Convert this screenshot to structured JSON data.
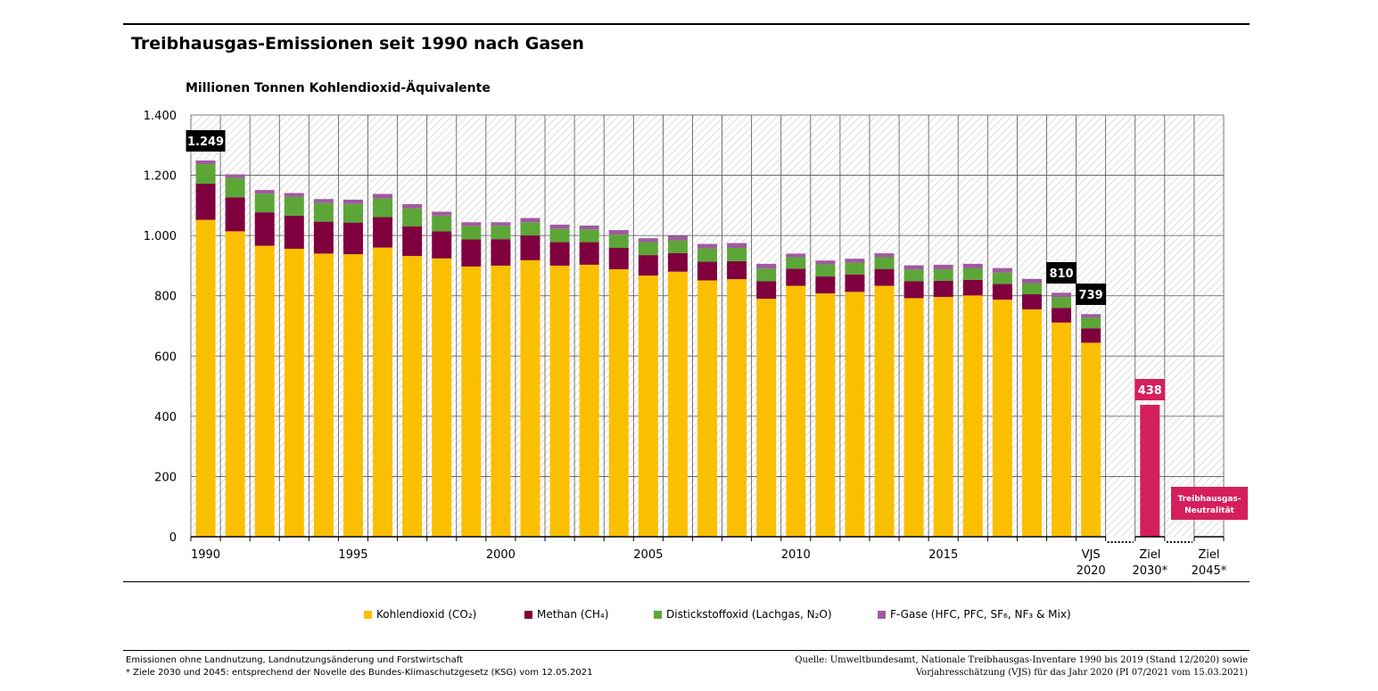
{
  "title": "Treibhausgas-Emissionen seit 1990 nach Gasen",
  "unit_label": "Millionen Tonnen Kohlendioxid-Äquivalente",
  "legend": [
    {
      "label": "Kohlendioxid (CO₂)",
      "color": "#f9bf00"
    },
    {
      "label": "Methan (CH₄)",
      "color": "#80003f"
    },
    {
      "label": "Distickstoffoxid (Lachgas, N₂O)",
      "color": "#5ca638"
    },
    {
      "label": "F-Gase (HFC, PFC, SF₆, NF₃ & Mix)",
      "color": "#a05aa0"
    }
  ],
  "footnotes": {
    "left_1": "Emissionen ohne Landnutzung, Landnutzungsänderung und Forstwirtschaft",
    "left_2": "* Ziele 2030 und 2045: entsprechend der Novelle des Bundes-Klimaschutzgesetz (KSG) vom 12.05.2021",
    "right_1": "Quelle: Umweltbundesamt, Nationale Treibhausgas-Inventare 1990 bis 2019 (Stand 12/2020) sowie",
    "right_2": "Vorjahresschätzung (VJS) für das Jahr 2020 (PI 07/2021 vom 15.03.2021)"
  },
  "chart_data": {
    "type": "bar",
    "stacked": true,
    "title": "Treibhausgas-Emissionen seit 1990 nach Gasen",
    "ylabel": "Millionen Tonnen Kohlendioxid-Äquivalente",
    "ylim": [
      0,
      1400
    ],
    "yticks": [
      0,
      200,
      400,
      600,
      800,
      1000,
      1200,
      1400
    ],
    "ytick_labels": [
      "0",
      "200",
      "400",
      "600",
      "800",
      "1.000",
      "1.200",
      "1.400"
    ],
    "grid": true,
    "legend_position": "bottom",
    "categories": [
      "1990",
      "1991",
      "1992",
      "1993",
      "1994",
      "1995",
      "1996",
      "1997",
      "1998",
      "1999",
      "2000",
      "2001",
      "2002",
      "2003",
      "2004",
      "2005",
      "2006",
      "2007",
      "2008",
      "2009",
      "2010",
      "2011",
      "2012",
      "2013",
      "2014",
      "2015",
      "2016",
      "2017",
      "2018",
      "2019",
      "VJS 2020"
    ],
    "x_tick_labels": [
      "1990",
      "1995",
      "2000",
      "2005",
      "2010",
      "2015",
      "VJS 2020",
      "Ziel 2030*",
      "Ziel 2045*"
    ],
    "series": [
      {
        "name": "Kohlendioxid (CO₂)",
        "color": "#f9bf00",
        "values": [
          1052,
          1014,
          966,
          956,
          940,
          938,
          960,
          932,
          924,
          897,
          900,
          918,
          900,
          903,
          888,
          867,
          880,
          851,
          855,
          790,
          833,
          808,
          813,
          833,
          792,
          796,
          801,
          787,
          755,
          711,
          644
        ]
      },
      {
        "name": "Methan (CH₄)",
        "color": "#80003f",
        "values": [
          120,
          113,
          111,
          110,
          106,
          105,
          101,
          98,
          90,
          90,
          88,
          82,
          78,
          75,
          71,
          68,
          62,
          62,
          60,
          58,
          57,
          56,
          58,
          56,
          56,
          54,
          52,
          52,
          50,
          49,
          48
        ]
      },
      {
        "name": "Distickstoffoxid (Lachgas, N₂O)",
        "color": "#5ca638",
        "values": [
          65,
          64,
          62,
          62,
          62,
          62,
          62,
          60,
          52,
          44,
          44,
          44,
          44,
          42,
          44,
          43,
          42,
          44,
          44,
          42,
          38,
          40,
          39,
          39,
          39,
          38,
          38,
          38,
          37,
          36,
          35
        ]
      },
      {
        "name": "F-Gase (HFC, PFC, SF₆, NF₃ & Mix)",
        "color": "#a05aa0",
        "values": [
          12,
          12,
          12,
          13,
          13,
          14,
          15,
          14,
          13,
          13,
          12,
          14,
          14,
          13,
          15,
          13,
          15,
          15,
          16,
          16,
          12,
          13,
          13,
          13,
          14,
          15,
          15,
          15,
          14,
          14,
          12
        ]
      }
    ],
    "totals_labels": [
      {
        "category": "1990",
        "label": "1.249"
      },
      {
        "category": "2019",
        "label": "810"
      },
      {
        "category": "VJS 2020",
        "label": "739"
      }
    ],
    "targets": [
      {
        "category": "Ziel 2030*",
        "value": 438,
        "label": "438",
        "color": "#d41f5c"
      },
      {
        "category": "Ziel 2045*",
        "value": 0,
        "label": "Treibhausgas-Neutralität",
        "color": "#d41f5c"
      }
    ]
  }
}
